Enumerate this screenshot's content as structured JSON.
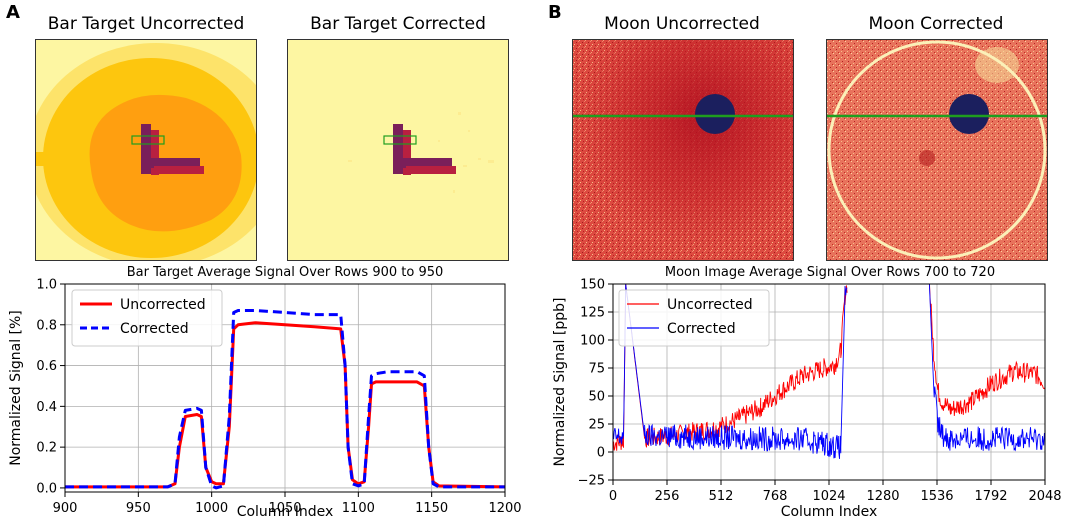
{
  "panels": {
    "a": {
      "letter": "A"
    },
    "b": {
      "letter": "B"
    }
  },
  "images": {
    "bar_uncorrected": {
      "title": "Bar Target Uncorrected"
    },
    "bar_corrected": {
      "title": "Bar Target Corrected"
    },
    "moon_uncorrected": {
      "title": "Moon Uncorrected"
    },
    "moon_corrected": {
      "title": "Moon Corrected"
    }
  },
  "colors": {
    "uncorrected": "#ff0000",
    "corrected": "#0000ff",
    "grid": "#b0b0b0",
    "image_bg_pale": "#fdf6a2",
    "image_orange": "#ff9f10",
    "image_yellow": "#fdc60e",
    "moon_red": "#cc2a2a",
    "moon_disk": "#1b1f5e",
    "guide_green": "#1f9e1f"
  },
  "chart_data": [
    {
      "type": "line",
      "title": "Bar Target Average Signal Over Rows 900 to 950",
      "xlabel": "Column Index",
      "ylabel": "Normalized Signal [%]",
      "xlim": [
        900,
        1200
      ],
      "ylim": [
        -0.02,
        1.0
      ],
      "xticks": [
        900,
        950,
        1000,
        1050,
        1100,
        1150,
        1200
      ],
      "yticks": [
        0.0,
        0.2,
        0.4,
        0.6,
        0.8,
        1.0
      ],
      "xtick_labels": [
        "900",
        "950",
        "1000",
        "1050",
        "1100",
        "1150",
        "1200"
      ],
      "ytick_labels": [
        "0.0",
        "0.2",
        "0.4",
        "0.6",
        "0.8",
        "1.0"
      ],
      "grid": true,
      "legend_position": "top-left",
      "series": [
        {
          "name": "Uncorrected",
          "style": "solid",
          "x": [
            900,
            970,
            975,
            978,
            982,
            990,
            993,
            996,
            1000,
            1003,
            1008,
            1012,
            1015,
            1018,
            1030,
            1050,
            1070,
            1088,
            1091,
            1093,
            1096,
            1100,
            1104,
            1107,
            1109,
            1112,
            1120,
            1140,
            1145,
            1148,
            1151,
            1155,
            1200
          ],
          "y": [
            0.005,
            0.005,
            0.02,
            0.2,
            0.35,
            0.36,
            0.35,
            0.1,
            0.03,
            0.02,
            0.02,
            0.3,
            0.78,
            0.8,
            0.81,
            0.8,
            0.79,
            0.78,
            0.6,
            0.2,
            0.04,
            0.02,
            0.03,
            0.3,
            0.51,
            0.52,
            0.52,
            0.52,
            0.5,
            0.2,
            0.03,
            0.01,
            0.005
          ]
        },
        {
          "name": "Corrected",
          "style": "dashed",
          "x": [
            900,
            970,
            975,
            978,
            982,
            990,
            993,
            996,
            1000,
            1003,
            1008,
            1012,
            1015,
            1018,
            1030,
            1050,
            1070,
            1088,
            1091,
            1093,
            1096,
            1100,
            1104,
            1107,
            1109,
            1112,
            1120,
            1140,
            1145,
            1148,
            1151,
            1155,
            1200
          ],
          "y": [
            0.005,
            0.005,
            0.02,
            0.25,
            0.38,
            0.39,
            0.38,
            0.1,
            0.01,
            0.0,
            0.01,
            0.35,
            0.86,
            0.87,
            0.87,
            0.86,
            0.85,
            0.85,
            0.6,
            0.2,
            0.02,
            0.01,
            0.02,
            0.35,
            0.55,
            0.56,
            0.57,
            0.57,
            0.55,
            0.2,
            0.02,
            0.005,
            0.005
          ]
        }
      ]
    },
    {
      "type": "line",
      "title": "Moon Image Average Signal Over Rows 700 to 720",
      "xlabel": "Column Index",
      "ylabel": "Normalized Signal [ppb]",
      "xlim": [
        0,
        2048
      ],
      "ylim": [
        -25,
        150
      ],
      "xticks": [
        0,
        256,
        512,
        768,
        1024,
        1280,
        1536,
        1792,
        2048
      ],
      "yticks": [
        -25,
        0,
        25,
        50,
        75,
        100,
        125,
        150
      ],
      "xtick_labels": [
        "0",
        "256",
        "512",
        "768",
        "1024",
        "1280",
        "1536",
        "1792",
        "2048"
      ],
      "ytick_labels": [
        "−25",
        "0",
        "25",
        "50",
        "75",
        "100",
        "125",
        "150"
      ],
      "grid": true,
      "legend_position": "top-left",
      "series": [
        {
          "name": "Uncorrected",
          "style": "solid-noisy",
          "noise": 9,
          "x": [
            0,
            50,
            60,
            150,
            300,
            500,
            600,
            700,
            800,
            900,
            1000,
            1050,
            1080,
            1100,
            1110,
            1490,
            1500,
            1520,
            1540,
            1560,
            1600,
            1700,
            1800,
            1900,
            2000,
            2048
          ],
          "y": [
            8,
            10,
            150,
            12,
            15,
            22,
            30,
            40,
            55,
            68,
            75,
            78,
            90,
            140,
            150,
            null,
            150,
            90,
            55,
            45,
            38,
            45,
            62,
            72,
            70,
            62
          ]
        },
        {
          "name": "Corrected",
          "style": "solid-noisy",
          "noise": 11,
          "x": [
            0,
            50,
            60,
            150,
            300,
            500,
            700,
            900,
            1000,
            1050,
            1080,
            1100,
            1110,
            1490,
            1500,
            1520,
            1540,
            1560,
            1600,
            1800,
            2000,
            2048
          ],
          "y": [
            12,
            14,
            150,
            14,
            14,
            13,
            12,
            11,
            8,
            5,
            4,
            140,
            150,
            null,
            150,
            60,
            25,
            15,
            12,
            12,
            12,
            12
          ]
        }
      ]
    }
  ]
}
